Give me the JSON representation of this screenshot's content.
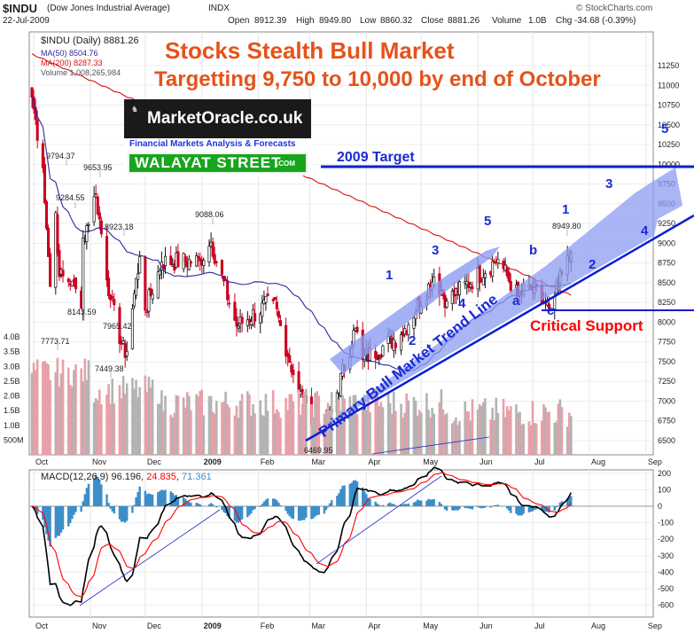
{
  "header": {
    "symbol": "$INDU",
    "name": "(Dow Jones Industrial Average)",
    "exchange": "INDX",
    "date": "22-Jul-2009",
    "open_label": "Open",
    "open": "8912.39",
    "high_label": "High",
    "high": "8949.80",
    "low_label": "Low",
    "low": "8860.32",
    "close_label": "Close",
    "close": "8881.26",
    "volume_label": "Volume",
    "volume": "1.0B",
    "chg_label": "Chg",
    "chg": "-34.68 (-0.39%)",
    "watermark": "© StockCharts.com"
  },
  "legend": {
    "symbol_line": "$INDU (Daily) 8881.26",
    "ma50": "MA(50) 8504.76",
    "ma200": "MA(200) 8287.33",
    "volume": "Volume 1,008,265,984"
  },
  "headline": {
    "title": "Stocks Stealth Bull Market",
    "subtitle": "Targetting 9,750 to 10,000 by end of October"
  },
  "logo": {
    "site": "MarketOracle.co.uk",
    "tagline": "Financial Markets Analysis & Forecasts",
    "brand": "WALAYAT STREET",
    "brand_suffix": ".COM"
  },
  "annotations": {
    "target_label": "2009 Target",
    "trend_label": "Primary Bull Market Trend Line",
    "support_label": "Critical Support",
    "wave_labels": [
      "1",
      "2",
      "3",
      "4",
      "5",
      "a",
      "b",
      "c",
      "1",
      "2",
      "3",
      "4",
      "5"
    ],
    "price_labels": [
      "9794.37",
      "9653.95",
      "9284.55",
      "8923.18",
      "9088.06",
      "8143.59",
      "7965.42",
      "7773.71",
      "7449.38",
      "6469.95",
      "8949.80"
    ]
  },
  "colors": {
    "candle_up": "#111111",
    "candle_down": "#cc0022",
    "ma50": "#2a2a9a",
    "ma200": "#dd1111",
    "volume_up": "#b3b3b3",
    "volume_down": "#e8a0a8",
    "trend_line": "#0a1fd1",
    "channel_arrow": "#8c9cf2",
    "headline": "#e5531a",
    "annotation_red": "#ff0000",
    "macd_line": "#000000",
    "signal_line": "#ff0000",
    "histogram": "#3c8ec9"
  },
  "chart_data": [
    {
      "type": "candlestick",
      "title": "$INDU (Daily) 8881.26",
      "x_tick_labels": [
        "Oct",
        "Nov",
        "Dec",
        "2009",
        "Feb",
        "Mar",
        "Apr",
        "May",
        "Jun",
        "Jul",
        "Aug",
        "Sep"
      ],
      "y_tick_labels": [
        "11250",
        "11000",
        "10750",
        "10500",
        "10250",
        "10000",
        "9750",
        "9500",
        "9250",
        "9000",
        "8750",
        "8500",
        "8250",
        "8000",
        "7750",
        "7500",
        "7250",
        "7000",
        "6750",
        "6500"
      ],
      "ylim": [
        6300,
        11400
      ],
      "close_anchors": [
        {
          "date": "2008-09-30",
          "value": 10850
        },
        {
          "date": "2008-10-06",
          "value": 9955
        },
        {
          "date": "2008-10-10",
          "value": 8451
        },
        {
          "date": "2008-10-13",
          "value": 9387
        },
        {
          "date": "2008-10-15",
          "value": 8577
        },
        {
          "date": "2008-10-22",
          "value": 8519
        },
        {
          "date": "2008-10-27",
          "value": 8175
        },
        {
          "date": "2008-10-28",
          "value": 9065
        },
        {
          "date": "2008-11-04",
          "value": 9625
        },
        {
          "date": "2008-11-12",
          "value": 8282
        },
        {
          "date": "2008-11-20",
          "value": 7552
        },
        {
          "date": "2008-11-28",
          "value": 8829
        },
        {
          "date": "2008-12-01",
          "value": 8149
        },
        {
          "date": "2008-12-10",
          "value": 8761
        },
        {
          "date": "2008-12-31",
          "value": 8776
        },
        {
          "date": "2009-01-06",
          "value": 9015
        },
        {
          "date": "2009-01-20",
          "value": 7949
        },
        {
          "date": "2009-02-09",
          "value": 8270
        },
        {
          "date": "2009-02-23",
          "value": 7114
        },
        {
          "date": "2009-03-09",
          "value": 6547
        },
        {
          "date": "2009-03-26",
          "value": 7924
        },
        {
          "date": "2009-03-30",
          "value": 7523
        },
        {
          "date": "2009-04-20",
          "value": 7841
        },
        {
          "date": "2009-05-08",
          "value": 8575
        },
        {
          "date": "2009-05-15",
          "value": 8268
        },
        {
          "date": "2009-06-12",
          "value": 8799
        },
        {
          "date": "2009-06-23",
          "value": 8323
        },
        {
          "date": "2009-06-30",
          "value": 8447
        },
        {
          "date": "2009-07-10",
          "value": 8146
        },
        {
          "date": "2009-07-13",
          "value": 8331
        },
        {
          "date": "2009-07-22",
          "value": 8881
        }
      ],
      "series": [
        {
          "name": "MA(50)",
          "last": 8504.76
        },
        {
          "name": "MA(200)",
          "last": 8287.33
        }
      ]
    },
    {
      "type": "bar",
      "title": "Volume 1,008,265,984",
      "y_tick_labels": [
        "4.0B",
        "3.5B",
        "3.0B",
        "2.5B",
        "2.0B",
        "1.5B",
        "1.0B",
        "500M"
      ],
      "ylim": [
        0,
        4.5
      ]
    },
    {
      "type": "line",
      "title": "MACD(12,26,9)",
      "values_text": {
        "macd": "96.196",
        "signal": "24.835",
        "histogram": "71.361"
      },
      "y_tick_labels": [
        "200",
        "100",
        "0",
        "-100",
        "-200",
        "-300",
        "-400",
        "-500",
        "-600"
      ],
      "ylim": [
        -650,
        250
      ],
      "x_tick_labels": [
        "Oct",
        "Nov",
        "Dec",
        "2009",
        "Feb",
        "Mar",
        "Apr",
        "May",
        "Jun",
        "Jul",
        "Aug",
        "Sep"
      ]
    }
  ]
}
